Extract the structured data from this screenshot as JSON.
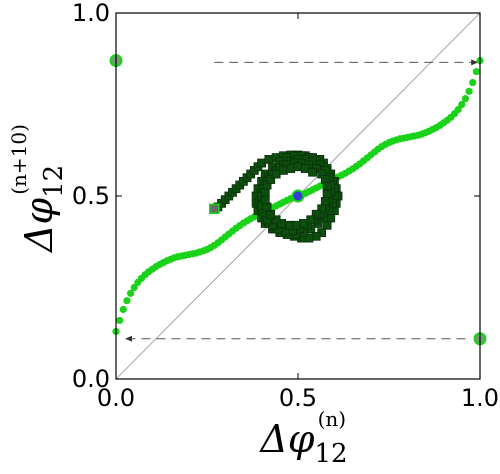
{
  "chart_data": {
    "type": "scatter",
    "xlim": [
      0.0,
      1.0
    ],
    "ylim": [
      0.0,
      1.0
    ],
    "grid": false,
    "x_ticks": [
      {
        "value": 0.0,
        "label": "0.0"
      },
      {
        "value": 0.5,
        "label": "0.5"
      },
      {
        "value": 1.0,
        "label": "1.0"
      }
    ],
    "y_ticks": [
      {
        "value": 0.0,
        "label": "0.0"
      },
      {
        "value": 0.5,
        "label": "0.5"
      },
      {
        "value": 1.0,
        "label": "1.0"
      }
    ],
    "xlabel": {
      "base": "Δφ",
      "subscript": "12",
      "superscript": "(n)"
    },
    "ylabel": {
      "base": "Δφ",
      "subscript": "12",
      "superscript": "(n+10)"
    },
    "diagonal": {
      "from": [
        0,
        0
      ],
      "to": [
        1,
        1
      ],
      "color": "#b0b0b0"
    },
    "series": [
      {
        "marker": "circle",
        "color": "#19d219",
        "points": [
          [
            0.0,
            0.13
          ],
          [
            0.01,
            0.16
          ],
          [
            0.02,
            0.19
          ],
          [
            0.03,
            0.214
          ],
          [
            0.04,
            0.234
          ],
          [
            0.05,
            0.25
          ],
          [
            0.06,
            0.264
          ],
          [
            0.07,
            0.275
          ],
          [
            0.08,
            0.285
          ],
          [
            0.09,
            0.293
          ],
          [
            0.1,
            0.3
          ],
          [
            0.11,
            0.307
          ],
          [
            0.12,
            0.313
          ],
          [
            0.13,
            0.318
          ],
          [
            0.14,
            0.323
          ],
          [
            0.15,
            0.327
          ],
          [
            0.16,
            0.331
          ],
          [
            0.17,
            0.334
          ],
          [
            0.18,
            0.336
          ],
          [
            0.19,
            0.338
          ],
          [
            0.2,
            0.34
          ],
          [
            0.21,
            0.342
          ],
          [
            0.22,
            0.344
          ],
          [
            0.23,
            0.347
          ],
          [
            0.24,
            0.35
          ],
          [
            0.25,
            0.354
          ],
          [
            0.26,
            0.359
          ],
          [
            0.27,
            0.365
          ],
          [
            0.28,
            0.372
          ],
          [
            0.29,
            0.38
          ],
          [
            0.3,
            0.388
          ],
          [
            0.31,
            0.396
          ],
          [
            0.32,
            0.404
          ],
          [
            0.33,
            0.412
          ],
          [
            0.34,
            0.419
          ],
          [
            0.35,
            0.426
          ],
          [
            0.36,
            0.432
          ],
          [
            0.37,
            0.438
          ],
          [
            0.38,
            0.443
          ],
          [
            0.39,
            0.448
          ],
          [
            0.4,
            0.453
          ],
          [
            0.41,
            0.458
          ],
          [
            0.42,
            0.463
          ],
          [
            0.43,
            0.468
          ],
          [
            0.44,
            0.473
          ],
          [
            0.45,
            0.478
          ],
          [
            0.46,
            0.483
          ],
          [
            0.47,
            0.488
          ],
          [
            0.48,
            0.493
          ],
          [
            0.49,
            0.497
          ],
          [
            0.5,
            0.5
          ],
          [
            0.51,
            0.503
          ],
          [
            0.52,
            0.507
          ],
          [
            0.53,
            0.512
          ],
          [
            0.54,
            0.517
          ],
          [
            0.55,
            0.522
          ],
          [
            0.56,
            0.527
          ],
          [
            0.57,
            0.532
          ],
          [
            0.58,
            0.537
          ],
          [
            0.59,
            0.542
          ],
          [
            0.6,
            0.547
          ],
          [
            0.61,
            0.552
          ],
          [
            0.62,
            0.557
          ],
          [
            0.63,
            0.562
          ],
          [
            0.64,
            0.568
          ],
          [
            0.65,
            0.574
          ],
          [
            0.66,
            0.581
          ],
          [
            0.67,
            0.588
          ],
          [
            0.68,
            0.596
          ],
          [
            0.69,
            0.604
          ],
          [
            0.7,
            0.612
          ],
          [
            0.71,
            0.62
          ],
          [
            0.72,
            0.628
          ],
          [
            0.73,
            0.635
          ],
          [
            0.74,
            0.641
          ],
          [
            0.75,
            0.646
          ],
          [
            0.76,
            0.65
          ],
          [
            0.77,
            0.653
          ],
          [
            0.78,
            0.656
          ],
          [
            0.79,
            0.658
          ],
          [
            0.8,
            0.66
          ],
          [
            0.81,
            0.662
          ],
          [
            0.82,
            0.664
          ],
          [
            0.83,
            0.666
          ],
          [
            0.84,
            0.669
          ],
          [
            0.85,
            0.673
          ],
          [
            0.86,
            0.677
          ],
          [
            0.87,
            0.682
          ],
          [
            0.88,
            0.687
          ],
          [
            0.89,
            0.693
          ],
          [
            0.9,
            0.7
          ],
          [
            0.91,
            0.707
          ],
          [
            0.92,
            0.715
          ],
          [
            0.93,
            0.725
          ],
          [
            0.94,
            0.736
          ],
          [
            0.95,
            0.75
          ],
          [
            0.96,
            0.766
          ],
          [
            0.97,
            0.786
          ],
          [
            0.98,
            0.81
          ],
          [
            0.99,
            0.84
          ],
          [
            1.0,
            0.87
          ]
        ]
      },
      {
        "marker": "square",
        "color": "#0d4d0d",
        "points": [
          [
            0.28,
            0.47
          ],
          [
            0.29,
            0.48
          ],
          [
            0.3,
            0.49
          ],
          [
            0.31,
            0.5
          ],
          [
            0.32,
            0.51
          ],
          [
            0.33,
            0.52
          ],
          [
            0.34,
            0.53
          ],
          [
            0.35,
            0.54
          ],
          [
            0.36,
            0.55
          ],
          [
            0.37,
            0.56
          ],
          [
            0.38,
            0.57
          ],
          [
            0.39,
            0.58
          ],
          [
            0.4,
            0.59
          ],
          [
            0.42,
            0.6
          ],
          [
            0.44,
            0.605
          ],
          [
            0.46,
            0.61
          ],
          [
            0.48,
            0.612
          ],
          [
            0.5,
            0.612
          ],
          [
            0.52,
            0.61
          ],
          [
            0.54,
            0.605
          ],
          [
            0.56,
            0.6
          ],
          [
            0.57,
            0.59
          ],
          [
            0.58,
            0.575
          ],
          [
            0.59,
            0.56
          ],
          [
            0.6,
            0.54
          ],
          [
            0.605,
            0.52
          ],
          [
            0.61,
            0.5
          ],
          [
            0.605,
            0.48
          ],
          [
            0.6,
            0.46
          ],
          [
            0.59,
            0.44
          ],
          [
            0.58,
            0.42
          ],
          [
            0.565,
            0.4
          ],
          [
            0.55,
            0.39
          ],
          [
            0.53,
            0.385
          ],
          [
            0.51,
            0.385
          ],
          [
            0.49,
            0.39
          ],
          [
            0.47,
            0.395
          ],
          [
            0.45,
            0.4
          ],
          [
            0.43,
            0.41
          ],
          [
            0.41,
            0.425
          ],
          [
            0.4,
            0.44
          ],
          [
            0.39,
            0.46
          ],
          [
            0.385,
            0.48
          ],
          [
            0.385,
            0.5
          ],
          [
            0.39,
            0.52
          ],
          [
            0.4,
            0.54
          ],
          [
            0.41,
            0.56
          ],
          [
            0.43,
            0.58
          ],
          [
            0.45,
            0.595
          ],
          [
            0.47,
            0.605
          ],
          [
            0.49,
            0.61
          ],
          [
            0.51,
            0.61
          ],
          [
            0.53,
            0.605
          ],
          [
            0.55,
            0.595
          ],
          [
            0.57,
            0.58
          ],
          [
            0.585,
            0.56
          ],
          [
            0.595,
            0.54
          ],
          [
            0.6,
            0.52
          ],
          [
            0.6,
            0.5
          ],
          [
            0.595,
            0.48
          ],
          [
            0.585,
            0.46
          ],
          [
            0.57,
            0.44
          ],
          [
            0.555,
            0.425
          ],
          [
            0.535,
            0.41
          ],
          [
            0.515,
            0.4
          ],
          [
            0.495,
            0.395
          ],
          [
            0.475,
            0.395
          ],
          [
            0.455,
            0.4
          ],
          [
            0.435,
            0.41
          ],
          [
            0.42,
            0.425
          ],
          [
            0.41,
            0.445
          ],
          [
            0.4,
            0.465
          ],
          [
            0.395,
            0.485
          ],
          [
            0.4,
            0.51
          ],
          [
            0.41,
            0.53
          ],
          [
            0.42,
            0.55
          ],
          [
            0.44,
            0.57
          ],
          [
            0.46,
            0.585
          ],
          [
            0.48,
            0.595
          ],
          [
            0.5,
            0.6
          ],
          [
            0.52,
            0.6
          ],
          [
            0.54,
            0.595
          ],
          [
            0.56,
            0.585
          ],
          [
            0.575,
            0.57
          ],
          [
            0.585,
            0.55
          ],
          [
            0.59,
            0.53
          ],
          [
            0.59,
            0.51
          ],
          [
            0.585,
            0.49
          ],
          [
            0.575,
            0.47
          ],
          [
            0.56,
            0.45
          ],
          [
            0.545,
            0.435
          ],
          [
            0.525,
            0.42
          ],
          [
            0.505,
            0.41
          ],
          [
            0.485,
            0.405
          ],
          [
            0.465,
            0.405
          ],
          [
            0.445,
            0.41
          ],
          [
            0.43,
            0.42
          ],
          [
            0.415,
            0.435
          ],
          [
            0.405,
            0.455
          ],
          [
            0.4,
            0.475
          ],
          [
            0.4,
            0.5
          ],
          [
            0.405,
            0.52
          ],
          [
            0.415,
            0.54
          ],
          [
            0.43,
            0.56
          ],
          [
            0.45,
            0.575
          ],
          [
            0.47,
            0.585
          ],
          [
            0.49,
            0.59
          ],
          [
            0.51,
            0.59
          ],
          [
            0.53,
            0.585
          ],
          [
            0.55,
            0.575
          ],
          [
            0.565,
            0.56
          ],
          [
            0.575,
            0.545
          ],
          [
            0.58,
            0.525
          ],
          [
            0.58,
            0.505
          ],
          [
            0.575,
            0.485
          ],
          [
            0.565,
            0.465
          ],
          [
            0.55,
            0.45
          ],
          [
            0.535,
            0.435
          ],
          [
            0.515,
            0.425
          ],
          [
            0.495,
            0.42
          ],
          [
            0.475,
            0.42
          ],
          [
            0.455,
            0.425
          ],
          [
            0.44,
            0.435
          ],
          [
            0.425,
            0.45
          ],
          [
            0.415,
            0.47
          ],
          [
            0.41,
            0.49
          ],
          [
            0.41,
            0.51
          ],
          [
            0.415,
            0.53
          ],
          [
            0.425,
            0.545
          ],
          [
            0.44,
            0.56
          ],
          [
            0.46,
            0.57
          ],
          [
            0.48,
            0.575
          ],
          [
            0.5,
            0.58
          ],
          [
            0.52,
            0.575
          ],
          [
            0.54,
            0.565
          ]
        ]
      },
      {
        "marker": "circle",
        "color": "#3a3ad6",
        "edgecolor": "#19d219",
        "points": [
          [
            0.5,
            0.5
          ]
        ]
      },
      {
        "marker": "circle",
        "color": "#6e9e6e",
        "edgecolor": "#19d219",
        "points": [
          [
            0.0,
            0.87
          ],
          [
            1.0,
            0.11
          ]
        ]
      },
      {
        "marker": "square",
        "color": "#6b6b6b",
        "edgecolor": "#19d219",
        "points": [
          [
            0.27,
            0.465
          ]
        ]
      }
    ],
    "arrows": [
      {
        "from": [
          0.27,
          0.865
        ],
        "to": [
          0.995,
          0.865
        ],
        "style": "dashed",
        "color": "#555555"
      },
      {
        "from": [
          0.96,
          0.11
        ],
        "to": [
          0.025,
          0.11
        ],
        "style": "dashed",
        "color": "#555555"
      }
    ]
  }
}
